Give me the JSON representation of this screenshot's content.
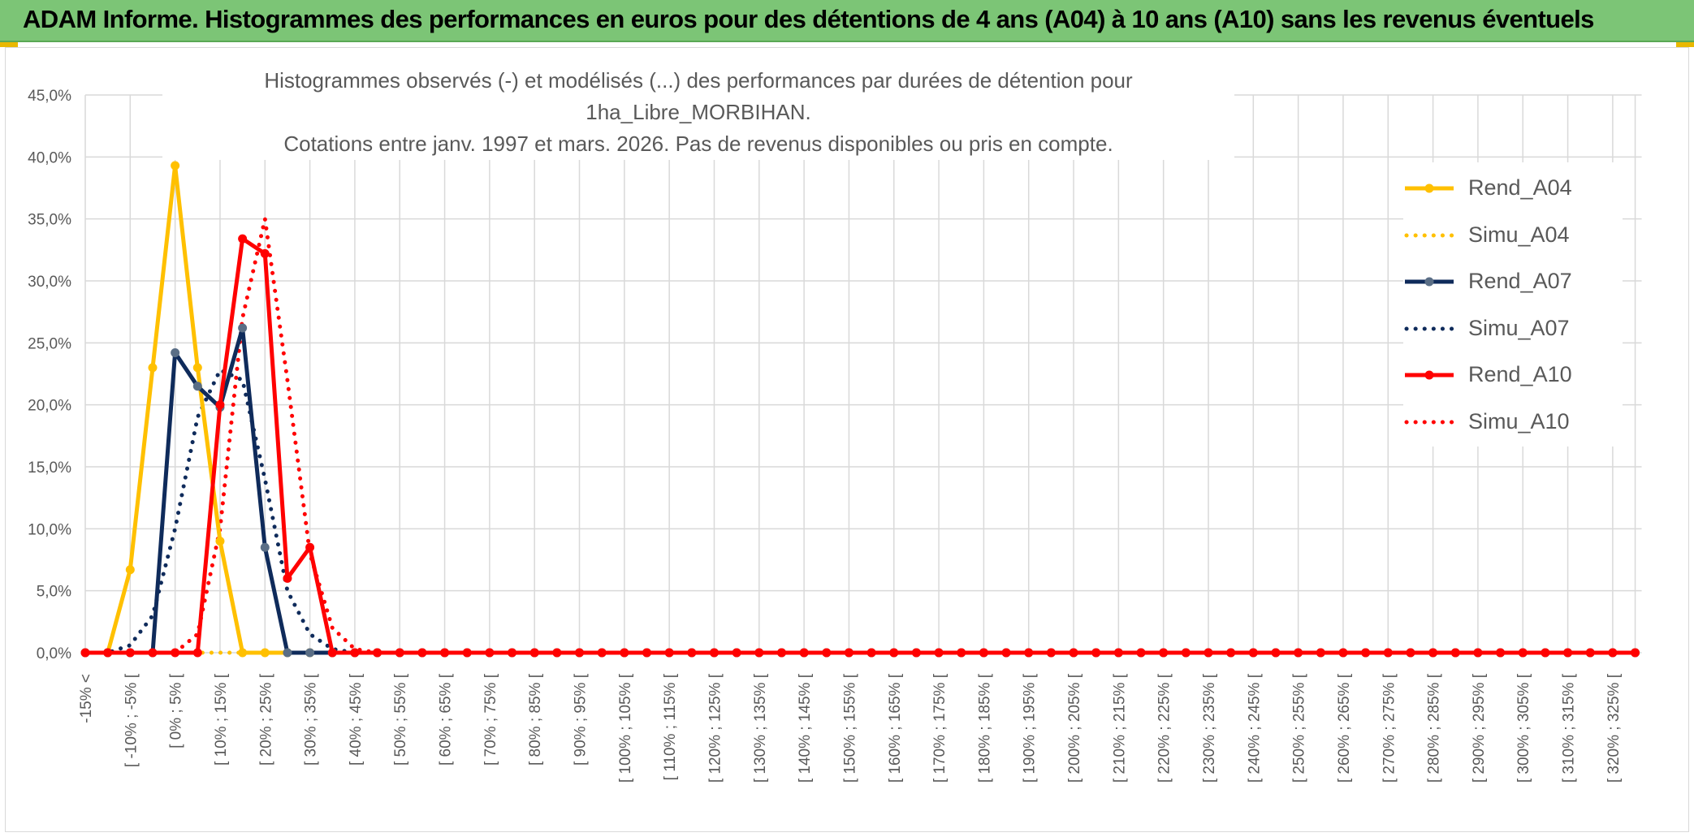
{
  "header": {
    "title": "ADAM Informe. Histogrammes des performances en euros pour des détentions de 4 ans (A04) à 10 ans (A10) sans les revenus éventuels"
  },
  "colors": {
    "header_bg": "#7cc576",
    "rend_a04": "#ffc000",
    "simu_a04": "#ffc000",
    "rend_a07": "#0f2b5b",
    "simu_a07": "#0f2b5b",
    "rend_a10": "#ff0000",
    "simu_a10": "#ff0000",
    "marker_a07": "#5a6e86"
  },
  "chart_data": {
    "type": "line",
    "title_line1": "Histogrammes observés (-) et modélisés (...) des performances par durées de détention pour 1ha_Libre_MORBIHAN.",
    "title_line2": "Cotations entre janv. 1997 et mars. 2026. Pas de revenus disponibles ou pris en compte.",
    "ylim": [
      0,
      45
    ],
    "yticks": [
      "0,0%",
      "5,0%",
      "10,0%",
      "15,0%",
      "20,0%",
      "25,0%",
      "30,0%",
      "35,0%",
      "40,0%",
      "45,0%"
    ],
    "ytick_values": [
      0,
      5,
      10,
      15,
      20,
      25,
      30,
      35,
      40,
      45
    ],
    "grid": true,
    "legend_position": "right",
    "categories_labeled": [
      "-15% <",
      "[ -10% ; -5% [",
      "[ 0% ; 5% [",
      "[ 10% ; 15% [",
      "[ 20% ; 25% [",
      "[ 30% ; 35% [",
      "[ 40% ; 45% [",
      "[ 50% ; 55% [",
      "[ 60% ; 65% [",
      "[ 70% ; 75% [",
      "[ 80% ; 85% [",
      "[ 90% ; 95% [",
      "[ 100% ; 105% [",
      "[ 110% ; 115% [",
      "[ 120% ; 125% [",
      "[ 130% ; 135% [",
      "[ 140% ; 145% [",
      "[ 150% ; 155% [",
      "[ 160% ; 165% [",
      "[ 170% ; 175% [",
      "[ 180% ; 185% [",
      "[ 190% ; 195% [",
      "[ 200% ; 205% [",
      "[ 210% ; 215% [",
      "[ 220% ; 225% [",
      "[ 230% ; 235% [",
      "[ 240% ; 245% [",
      "[ 250% ; 255% [",
      "[ 260% ; 265% [",
      "[ 270% ; 275% [",
      "[ 280% ; 285% [",
      "[ 290% ; 295% [",
      "[ 300% ; 305% [",
      "[ 310% ; 315% [",
      "[ 320% ; 325% ["
    ],
    "num_categories": 70,
    "series": [
      {
        "name": "Rend_A04",
        "style": "solid",
        "color": "#ffc000",
        "values": [
          0,
          0,
          6.7,
          23,
          39.3,
          23,
          9,
          0,
          0
        ]
      },
      {
        "name": "Simu_A04",
        "style": "dotted",
        "color": "#ffc000",
        "values": [
          0,
          0,
          0,
          0,
          0,
          0,
          0,
          0,
          0,
          0
        ]
      },
      {
        "name": "Rend_A07",
        "style": "solid",
        "color": "#0f2b5b",
        "values": [
          0,
          0,
          0,
          0,
          24.2,
          21.5,
          19.8,
          26.2,
          8.5,
          0,
          0,
          0
        ]
      },
      {
        "name": "Simu_A07",
        "style": "dotted",
        "color": "#0f2b5b",
        "values": [
          0,
          0,
          0.6,
          3,
          10,
          19,
          22.8,
          22,
          14,
          5,
          1.5,
          0.3,
          0
        ]
      },
      {
        "name": "Rend_A10",
        "style": "solid",
        "color": "#ff0000",
        "values": [
          0,
          0,
          0,
          0,
          0,
          0,
          20,
          33.4,
          32.2,
          6,
          8.5,
          0,
          0
        ]
      },
      {
        "name": "Simu_A10",
        "style": "dotted",
        "color": "#ff0000",
        "values": [
          0,
          0,
          0,
          0,
          0,
          1.5,
          10,
          27,
          35,
          22,
          8,
          2,
          0.3,
          0
        ]
      }
    ]
  }
}
